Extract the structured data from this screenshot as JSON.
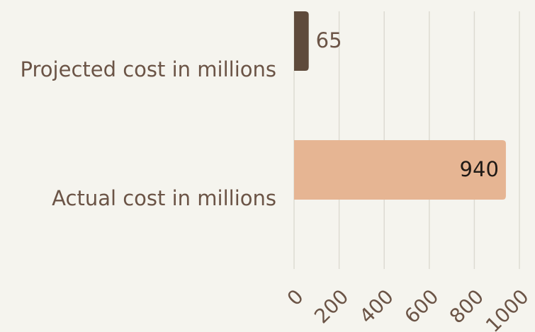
{
  "chart_data": {
    "type": "bar",
    "orientation": "horizontal",
    "categories": [
      "Projected cost in millions",
      "Actual cost in millions"
    ],
    "values": [
      65,
      940
    ],
    "value_labels": [
      "65",
      "940"
    ],
    "colors": [
      "#5e4a3b",
      "#e6b593"
    ],
    "value_label_colors": [
      "#6b5446",
      "#1f1a16"
    ],
    "xlim": [
      0,
      1000
    ],
    "x_ticks": [
      0,
      200,
      400,
      600,
      800,
      1000
    ],
    "x_tick_labels": [
      "0",
      "200",
      "400",
      "600",
      "800",
      "1000"
    ],
    "grid": true,
    "title": "",
    "xlabel": "",
    "ylabel": ""
  }
}
